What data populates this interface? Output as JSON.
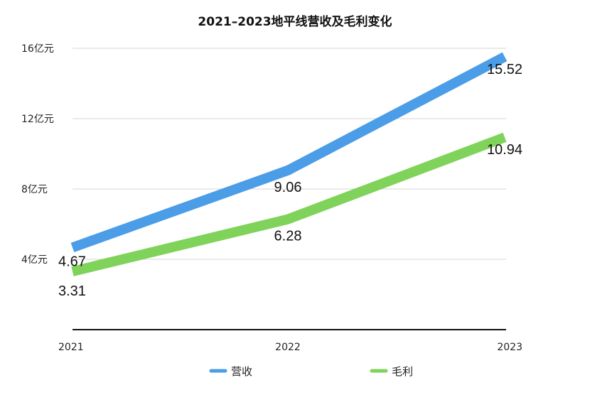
{
  "chart_data": {
    "type": "line",
    "title": "2021–2023地平线营收及毛利变化",
    "xlabel": "",
    "ylabel": "",
    "categories": [
      "2021",
      "2022",
      "2023"
    ],
    "y_ticks": [
      {
        "value": 4,
        "label": "4亿元"
      },
      {
        "value": 8,
        "label": "8亿元"
      },
      {
        "value": 12,
        "label": "12亿元"
      },
      {
        "value": 16,
        "label": "16亿元"
      }
    ],
    "ylim": [
      0,
      16
    ],
    "grid": true,
    "legend_position": "bottom",
    "series": [
      {
        "name": "营收",
        "color": "#4a9de6",
        "values": [
          4.67,
          9.06,
          15.52
        ],
        "labels": [
          "4.67",
          "9.06",
          "15.52"
        ]
      },
      {
        "name": "毛利",
        "color": "#7fd35a",
        "values": [
          3.31,
          6.28,
          10.94
        ],
        "labels": [
          "3.31",
          "6.28",
          "10.94"
        ]
      }
    ]
  }
}
